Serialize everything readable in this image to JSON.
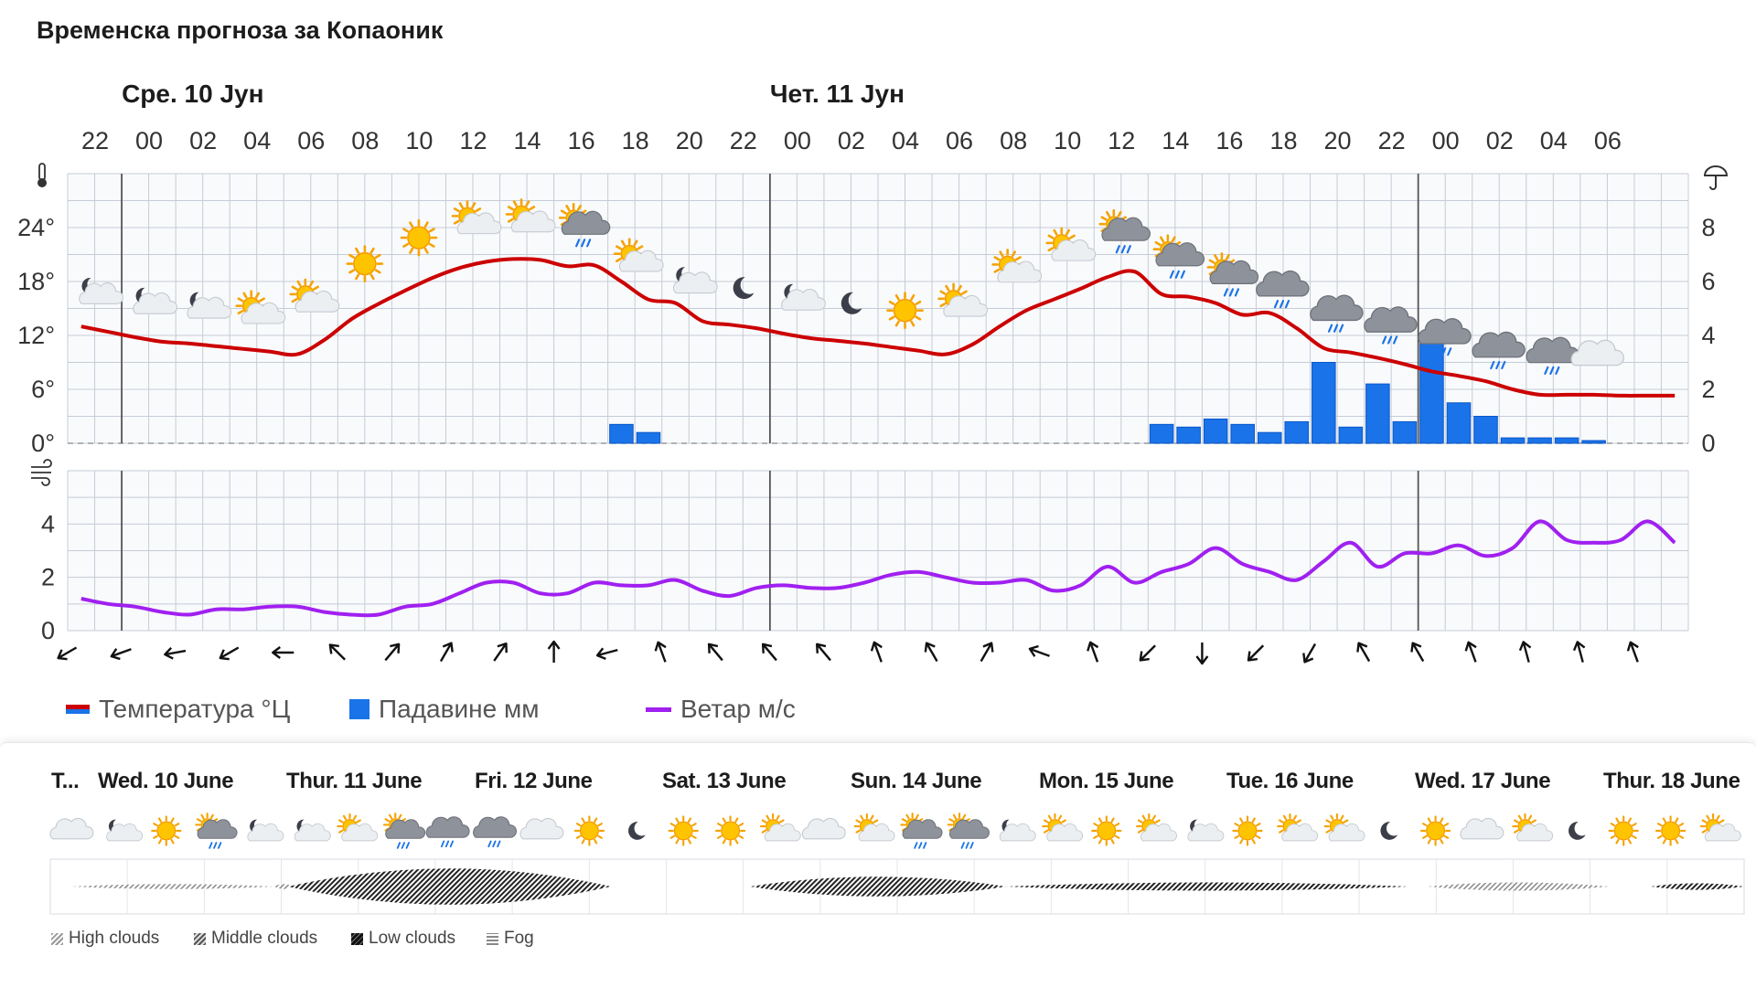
{
  "page": {
    "title": "Временска прогноза за Копаоник"
  },
  "chart_data": {
    "type": "meteogram",
    "days": [
      {
        "label": "Сре. 10 Јун",
        "start_index": 1
      },
      {
        "label": "Чет. 11 Јун",
        "start_index": 13
      }
    ],
    "hour_labels": [
      "22",
      "00",
      "02",
      "04",
      "06",
      "08",
      "10",
      "12",
      "14",
      "16",
      "18",
      "20",
      "22",
      "00",
      "02",
      "04",
      "06",
      "08",
      "10",
      "12",
      "14",
      "16",
      "18",
      "20",
      "22",
      "00",
      "02",
      "04",
      "06"
    ],
    "temperature_axis": {
      "ticks": [
        "0°",
        "6°",
        "12°",
        "18°",
        "24°"
      ],
      "ylim": [
        0,
        30
      ]
    },
    "precip_axis": {
      "ticks": [
        "0",
        "2",
        "4",
        "6",
        "8"
      ],
      "ylim": [
        0,
        10
      ]
    },
    "wind_axis": {
      "ticks": [
        "0",
        "2",
        "4"
      ],
      "ylim": [
        0,
        6
      ]
    },
    "temperature": [
      13.0,
      12.4,
      11.8,
      11.3,
      11.1,
      10.8,
      10.5,
      10.2,
      9.9,
      11.5,
      13.8,
      15.5,
      17.0,
      18.4,
      19.5,
      20.2,
      20.5,
      20.4,
      19.7,
      19.8,
      18.0,
      16.0,
      15.6,
      13.6,
      13.2,
      12.8,
      12.2,
      11.7,
      11.4,
      11.1,
      10.7,
      10.3,
      9.9,
      11.0,
      13.0,
      14.8,
      16.0,
      17.2,
      18.5,
      19.1,
      16.6,
      16.3,
      15.6,
      14.3,
      14.5,
      12.8,
      10.6,
      10.1,
      9.5,
      8.8,
      8.0,
      7.5,
      6.9,
      6.0,
      5.4,
      5.4,
      5.4,
      5.3,
      5.3,
      5.3
    ],
    "precipitation": [
      0,
      0,
      0,
      0,
      0,
      0,
      0,
      0,
      0,
      0,
      0,
      0,
      0,
      0,
      0,
      0,
      0,
      0,
      0,
      0,
      0.7,
      0.4,
      0,
      0,
      0,
      0,
      0,
      0,
      0,
      0,
      0,
      0,
      0,
      0,
      0,
      0,
      0,
      0,
      0,
      0,
      0.7,
      0.6,
      0.9,
      0.7,
      0.4,
      0.8,
      3.0,
      0.6,
      2.2,
      0.8,
      3.7,
      1.5,
      1.0,
      0.2,
      0.2,
      0.2,
      0.1,
      0,
      0,
      0
    ],
    "wind_speed": [
      1.2,
      1.0,
      0.9,
      0.7,
      0.6,
      0.8,
      0.8,
      0.9,
      0.9,
      0.7,
      0.6,
      0.6,
      0.9,
      1.0,
      1.4,
      1.8,
      1.8,
      1.4,
      1.4,
      1.8,
      1.7,
      1.7,
      1.9,
      1.5,
      1.3,
      1.6,
      1.7,
      1.6,
      1.6,
      1.8,
      2.1,
      2.2,
      2.0,
      1.8,
      1.8,
      1.9,
      1.5,
      1.7,
      2.4,
      1.8,
      2.2,
      2.5,
      3.1,
      2.5,
      2.2,
      1.9,
      2.6,
      3.3,
      2.4,
      2.9,
      2.9,
      3.2,
      2.8,
      3.1,
      4.1,
      3.4,
      3.3,
      3.4,
      4.1,
      3.3
    ],
    "wind_direction_deg": [
      60,
      70,
      80,
      60,
      90,
      135,
      220,
      210,
      215,
      180,
      75,
      160,
      140,
      140,
      140,
      160,
      150,
      210,
      110,
      160,
      45,
      0,
      45,
      30,
      150,
      150,
      160,
      165,
      165,
      160
    ],
    "weather_symbols": [
      "partly-cloudy-night",
      "partly-cloudy-night",
      "partly-cloudy-night",
      "partly-cloudy-sun",
      "partly-cloudy-sun",
      "sun",
      "sun",
      "partly-cloudy-sun",
      "partly-cloudy-sun",
      "rain-showers-sun",
      "partly-cloudy-sun",
      "partly-cloudy-night",
      "moon",
      "partly-cloudy-night",
      "moon",
      "sun",
      "partly-cloudy-sun",
      "partly-cloudy-sun",
      "partly-cloudy-sun",
      "rain-showers-sun",
      "rain-showers-sun",
      "rain-showers-sun",
      "rain-cloud",
      "rain-cloud",
      "rain-cloud",
      "rain-cloud",
      "rain-cloud",
      "rain-cloud",
      "cloud"
    ],
    "legend": [
      {
        "label": "Температура °Ц",
        "color": "#cc0000",
        "symbol": "line"
      },
      {
        "label": "Падавине мм",
        "color": "#1a73e8",
        "symbol": "square"
      },
      {
        "label": "Ветар м/с",
        "color": "#a020f0",
        "symbol": "line"
      }
    ]
  },
  "forecast_days": {
    "labels": [
      "T...",
      "Wed. 10 June",
      "Thur. 11 June",
      "Fri. 12 June",
      "Sat. 13 June",
      "Sun. 14 June",
      "Mon. 15 June",
      "Tue. 16 June",
      "Wed. 17 June",
      "Thur. 18 June"
    ],
    "symbols": [
      "cloud",
      "partly-cloudy-night",
      "sun",
      "rain-showers-sun",
      "partly-cloudy-night",
      "partly-cloudy-night",
      "partly-cloudy-sun",
      "rain-showers-sun",
      "rain-cloud",
      "rain-cloud",
      "cloud",
      "sun",
      "moon",
      "sun",
      "sun",
      "partly-cloudy-sun",
      "cloud",
      "partly-cloudy-sun",
      "rain-showers-sun",
      "rain-showers-sun",
      "partly-cloudy-night",
      "partly-cloudy-sun",
      "sun",
      "partly-cloudy-sun",
      "partly-cloudy-night",
      "sun",
      "partly-cloudy-sun",
      "partly-cloudy-sun",
      "moon",
      "sun",
      "cloud",
      "partly-cloudy-sun",
      "moon",
      "sun",
      "sun",
      "partly-cloudy-sun"
    ]
  },
  "cloud_legend": [
    "High clouds",
    "Middle clouds",
    "Low clouds",
    "Fog"
  ],
  "colors": {
    "temperature": "#cc0000",
    "precipitation": "#1a73e8",
    "wind": "#a020f0",
    "grid": "#c5ccd6",
    "day_divider": "#555555"
  }
}
